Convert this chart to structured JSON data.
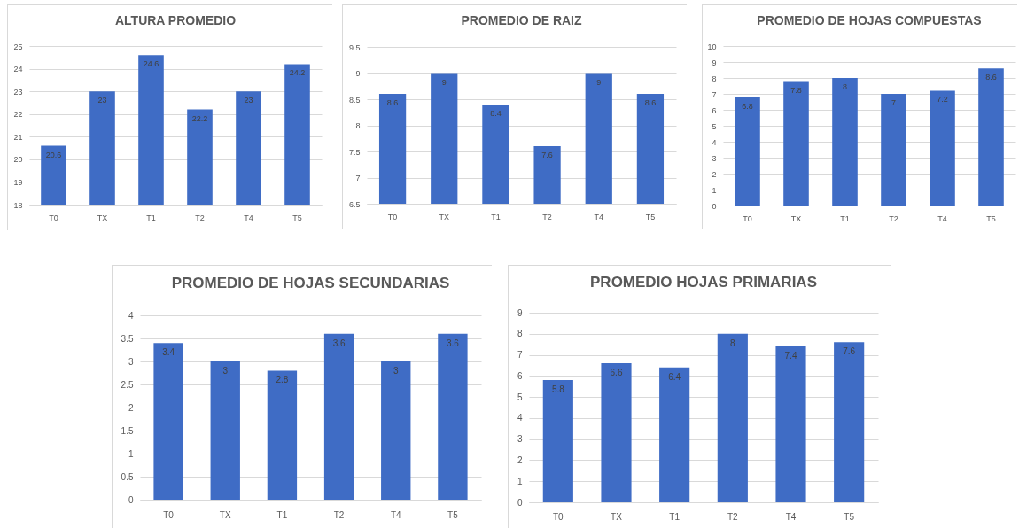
{
  "chart_data": [
    {
      "type": "bar",
      "title": "ALTURA PROMEDIO",
      "categories": [
        "T0",
        "TX",
        "T1",
        "T2",
        "T4",
        "T5"
      ],
      "values": [
        20.6,
        23,
        24.6,
        22.2,
        23,
        24.2
      ],
      "color": "#3f6cc5",
      "ylim": [
        18,
        25
      ],
      "yticks": [
        18,
        19,
        20,
        21,
        22,
        23,
        24,
        25
      ],
      "grid": "y",
      "data_labels": true
    },
    {
      "type": "bar",
      "title": "PROMEDIO DE RAIZ",
      "categories": [
        "T0",
        "TX",
        "T1",
        "T2",
        "T4",
        "T5"
      ],
      "values": [
        8.6,
        9,
        8.4,
        7.6,
        9,
        8.6
      ],
      "color": "#3f6cc5",
      "ylim": [
        6.5,
        9.5
      ],
      "yticks": [
        6.5,
        7,
        7.5,
        8,
        8.5,
        9,
        9.5
      ],
      "grid": "y",
      "data_labels": true
    },
    {
      "type": "bar",
      "title": "PROMEDIO DE HOJAS COMPUESTAS",
      "categories": [
        "T0",
        "TX",
        "T1",
        "T2",
        "T4",
        "T5"
      ],
      "values": [
        6.8,
        7.8,
        8,
        7,
        7.2,
        8.6
      ],
      "color": "#3f6cc5",
      "ylim": [
        0,
        10
      ],
      "yticks": [
        0,
        1,
        2,
        3,
        4,
        5,
        6,
        7,
        8,
        9,
        10
      ],
      "grid": "y",
      "data_labels": true
    },
    {
      "type": "bar",
      "title": "PROMEDIO DE HOJAS SECUNDARIAS",
      "categories": [
        "T0",
        "TX",
        "T1",
        "T2",
        "T4",
        "T5"
      ],
      "values": [
        3.4,
        3,
        2.8,
        3.6,
        3,
        3.6
      ],
      "color": "#3f6cc5",
      "ylim": [
        0,
        4
      ],
      "yticks": [
        0,
        0.5,
        1,
        1.5,
        2,
        2.5,
        3,
        3.5,
        4
      ],
      "grid": "y",
      "data_labels": true
    },
    {
      "type": "bar",
      "title": "PROMEDIO HOJAS PRIMARIAS",
      "categories": [
        "T0",
        "TX",
        "T1",
        "T2",
        "T4",
        "T5"
      ],
      "values": [
        5.8,
        6.6,
        6.4,
        8,
        7.4,
        7.6
      ],
      "color": "#3f6cc5",
      "ylim": [
        0,
        9
      ],
      "yticks": [
        0,
        1,
        2,
        3,
        4,
        5,
        6,
        7,
        8,
        9
      ],
      "grid": "y",
      "data_labels": true
    }
  ]
}
